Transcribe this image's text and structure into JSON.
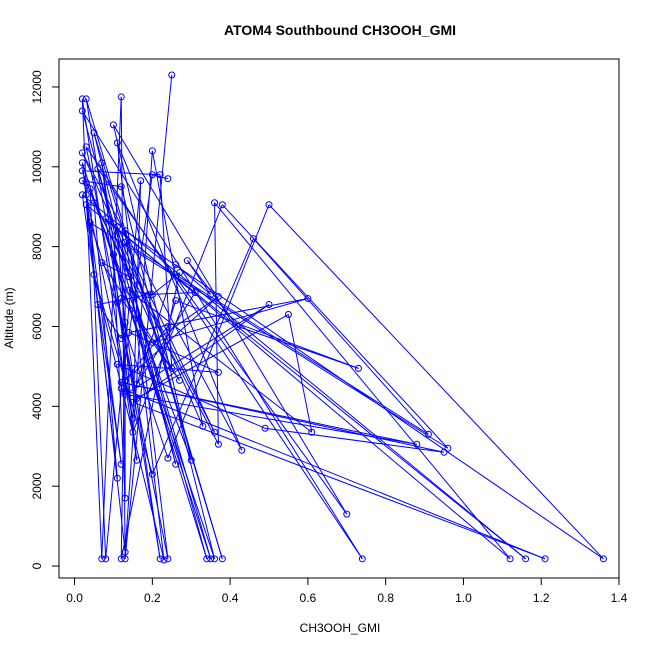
{
  "chart_data": {
    "type": "line",
    "title": "ATOM4 Southbound CH3OOH_GMI",
    "xlabel": "CH3OOH_GMI",
    "ylabel": "Altitude (m)",
    "xlim": [
      -0.04,
      1.4
    ],
    "ylim": [
      -300,
      12700
    ],
    "xticks": [
      "0.0",
      "0.2",
      "0.4",
      "0.6",
      "0.8",
      "1.0",
      "1.2",
      "1.4"
    ],
    "yticks": [
      "0",
      "2000",
      "4000",
      "6000",
      "8000",
      "10000",
      "12000"
    ],
    "xtick_values": [
      0.0,
      0.2,
      0.4,
      0.6,
      0.8,
      1.0,
      1.2,
      1.4
    ],
    "ytick_values": [
      0,
      2000,
      4000,
      6000,
      8000,
      10000,
      12000
    ],
    "grid": false,
    "legend": "none",
    "line_color": "#0000ff",
    "marker": "open-circle",
    "points": [
      [
        0.25,
        12300
      ],
      [
        0.13,
        180
      ],
      [
        0.12,
        11750
      ],
      [
        0.07,
        180
      ],
      [
        0.02,
        11700
      ],
      [
        0.16,
        2650
      ],
      [
        0.07,
        10100
      ],
      [
        0.22,
        180
      ],
      [
        0.03,
        11700
      ],
      [
        0.38,
        180
      ],
      [
        0.05,
        10850
      ],
      [
        0.26,
        2550
      ],
      [
        0.02,
        11400
      ],
      [
        0.74,
        180
      ],
      [
        0.03,
        10500
      ],
      [
        0.24,
        180
      ],
      [
        0.11,
        10600
      ],
      [
        0.43,
        2900
      ],
      [
        0.02,
        10350
      ],
      [
        0.33,
        3500
      ],
      [
        0.2,
        10400
      ],
      [
        0.13,
        350
      ],
      [
        0.02,
        10100
      ],
      [
        0.35,
        180
      ],
      [
        0.06,
        9950
      ],
      [
        0.7,
        1300
      ],
      [
        0.1,
        11050
      ],
      [
        0.3,
        2650
      ],
      [
        0.02,
        9900
      ],
      [
        0.22,
        9800
      ],
      [
        0.25,
        4950
      ],
      [
        0.03,
        9600
      ],
      [
        0.02,
        9650
      ],
      [
        0.12,
        9500
      ],
      [
        0.36,
        180
      ],
      [
        0.04,
        9450
      ],
      [
        0.08,
        180
      ],
      [
        0.17,
        9650
      ],
      [
        0.15,
        3700
      ],
      [
        0.03,
        9300
      ],
      [
        0.12,
        2550
      ],
      [
        0.02,
        9300
      ],
      [
        1.16,
        180
      ],
      [
        0.03,
        9050
      ],
      [
        0.11,
        2200
      ],
      [
        0.05,
        9100
      ],
      [
        0.37,
        3050
      ],
      [
        0.36,
        9100
      ],
      [
        1.12,
        180
      ],
      [
        0.08,
        8700
      ],
      [
        0.36,
        3350
      ],
      [
        0.11,
        8500
      ],
      [
        0.15,
        3350
      ],
      [
        0.38,
        9050
      ],
      [
        0.96,
        2950
      ],
      [
        0.04,
        8600
      ],
      [
        0.24,
        2700
      ],
      [
        0.5,
        9050
      ],
      [
        1.36,
        180
      ],
      [
        0.13,
        8400
      ],
      [
        0.23,
        150
      ],
      [
        0.05,
        7300
      ],
      [
        0.2,
        2300
      ],
      [
        0.46,
        8200
      ],
      [
        0.91,
        3300
      ],
      [
        0.13,
        8100
      ],
      [
        0.13,
        1700
      ],
      [
        0.1,
        7800
      ],
      [
        0.34,
        180
      ],
      [
        0.14,
        7250
      ],
      [
        0.07,
        7600
      ],
      [
        0.27,
        4650
      ],
      [
        0.12,
        6700
      ],
      [
        0.11,
        6600
      ],
      [
        0.16,
        4200
      ],
      [
        0.55,
        6300
      ],
      [
        0.61,
        3350
      ],
      [
        0.14,
        6900
      ],
      [
        0.2,
        6800
      ],
      [
        0.27,
        7350
      ],
      [
        0.12,
        180
      ],
      [
        0.13,
        6100
      ],
      [
        0.12,
        5700
      ],
      [
        0.06,
        6550
      ],
      [
        0.19,
        6800
      ],
      [
        0.31,
        6850
      ],
      [
        0.16,
        4550
      ],
      [
        0.26,
        7550
      ],
      [
        0.35,
        6800
      ],
      [
        0.29,
        7650
      ],
      [
        0.42,
        6000
      ],
      [
        0.73,
        4950
      ],
      [
        0.26,
        6650
      ],
      [
        0.24,
        6000
      ],
      [
        0.13,
        4650
      ],
      [
        0.37,
        6750
      ],
      [
        0.2,
        5600
      ],
      [
        0.6,
        6700
      ],
      [
        0.14,
        5850
      ],
      [
        0.37,
        4850
      ],
      [
        0.11,
        5050
      ],
      [
        0.49,
        3450
      ],
      [
        0.95,
        2850
      ],
      [
        0.12,
        4600
      ],
      [
        0.88,
        3050
      ],
      [
        0.13,
        4300
      ],
      [
        0.5,
        6550
      ],
      [
        0.15,
        4100
      ],
      [
        1.21,
        180
      ],
      [
        0.12,
        4450
      ],
      [
        0.2,
        9800
      ],
      [
        0.24,
        9700
      ]
    ]
  }
}
